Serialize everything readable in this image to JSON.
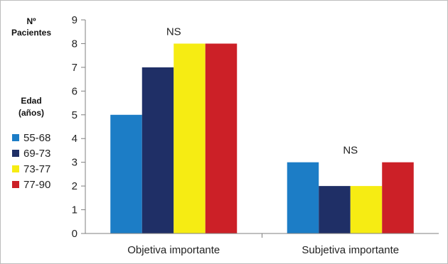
{
  "chart_data": {
    "type": "bar",
    "title": "",
    "xlabel": "",
    "ylabel_lines": [
      "Nº",
      "Pacientes"
    ],
    "legend_title_lines": [
      "Edad",
      "(años)"
    ],
    "legend_position": "left",
    "categories": [
      "Objetiva  importante",
      "Subjetiva importante"
    ],
    "series": [
      {
        "name": "55-68",
        "values": [
          5,
          3
        ],
        "color": "#1c7dc6"
      },
      {
        "name": "69-73",
        "values": [
          7,
          2
        ],
        "color": "#1f2f66"
      },
      {
        "name": "73-77",
        "values": [
          8,
          2
        ],
        "color": "#f6ec13"
      },
      {
        "name": "77-90",
        "values": [
          8,
          3
        ],
        "color": "#cc2027"
      }
    ],
    "annotations": [
      "NS",
      "NS"
    ],
    "ylim": [
      0,
      9
    ],
    "yticks": [
      "0",
      "1",
      "2",
      "3",
      "4",
      "5",
      "6",
      "7",
      "8",
      "9"
    ],
    "grid": false
  }
}
